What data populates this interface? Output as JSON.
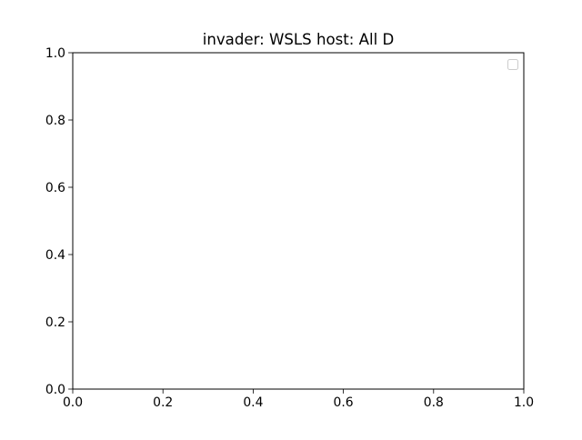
{
  "chart_data": {
    "type": "line",
    "title": "invader: WSLS host: All D",
    "xlabel": "",
    "ylabel": "",
    "xlim": [
      0.0,
      1.0
    ],
    "ylim": [
      0.0,
      1.0
    ],
    "xticks": [
      "0.0",
      "0.2",
      "0.4",
      "0.6",
      "0.8",
      "1.0"
    ],
    "yticks": [
      "0.0",
      "0.2",
      "0.4",
      "0.6",
      "0.8",
      "1.0"
    ],
    "series": [],
    "grid": false,
    "legend": {
      "placement": "top-right",
      "entries": []
    }
  },
  "colors": {
    "axes": "#000000",
    "background": "#ffffff",
    "legend_border": "#cccccc"
  }
}
